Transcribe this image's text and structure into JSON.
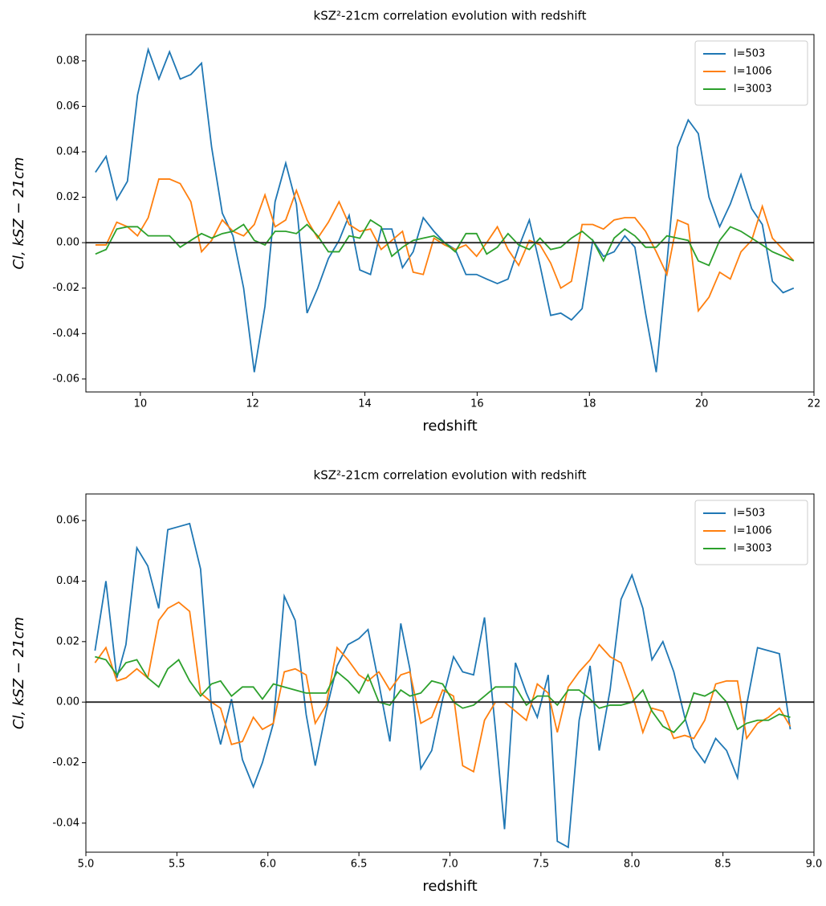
{
  "chart_data": [
    {
      "type": "line",
      "title": "kSZ²-21cm correlation evolution with redshift",
      "x_label": "redshift",
      "y_label": "Cl, kSZ − 21cm",
      "x": [
        9.2,
        9.39,
        9.58,
        9.77,
        9.95,
        10.14,
        10.33,
        10.52,
        10.71,
        10.9,
        11.09,
        11.27,
        11.46,
        11.65,
        11.84,
        12.03,
        12.22,
        12.4,
        12.59,
        12.78,
        12.97,
        13.16,
        13.35,
        13.54,
        13.72,
        13.91,
        14.1,
        14.29,
        14.48,
        14.67,
        14.86,
        15.04,
        15.23,
        15.42,
        15.61,
        15.8,
        15.99,
        16.17,
        16.36,
        16.55,
        16.74,
        16.93,
        17.12,
        17.31,
        17.49,
        17.68,
        17.87,
        18.06,
        18.25,
        18.44,
        18.63,
        18.81,
        19.0,
        19.19,
        19.38,
        19.57,
        19.76,
        19.94,
        20.13,
        20.32,
        20.51,
        20.7,
        20.89,
        21.08,
        21.26,
        21.45,
        21.64
      ],
      "series": [
        {
          "name": "l=503",
          "color": "#1f77b4",
          "values": [
            0.031,
            0.038,
            0.019,
            0.027,
            0.065,
            0.085,
            0.072,
            0.084,
            0.072,
            0.074,
            0.079,
            0.042,
            0.013,
            0.003,
            -0.02,
            -0.057,
            -0.028,
            0.018,
            0.035,
            0.017,
            -0.031,
            -0.02,
            -0.007,
            0.001,
            0.012,
            -0.012,
            -0.014,
            0.006,
            0.006,
            -0.011,
            -0.004,
            0.011,
            0.005,
            0.0,
            -0.003,
            -0.014,
            -0.014,
            -0.016,
            -0.018,
            -0.016,
            -0.002,
            0.01,
            -0.01,
            -0.032,
            -0.031,
            -0.034,
            -0.029,
            0.001,
            -0.006,
            -0.004,
            0.003,
            -0.002,
            -0.031,
            -0.057,
            -0.009,
            0.042,
            0.054,
            0.048,
            0.02,
            0.007,
            0.017,
            0.03,
            0.015,
            0.008,
            -0.017,
            -0.022,
            -0.02
          ]
        },
        {
          "name": "l=1006",
          "color": "#ff7f0e",
          "values": [
            -0.001,
            -0.001,
            0.009,
            0.007,
            0.003,
            0.011,
            0.028,
            0.028,
            0.026,
            0.018,
            -0.004,
            0.001,
            0.01,
            0.005,
            0.003,
            0.008,
            0.021,
            0.007,
            0.01,
            0.023,
            0.01,
            0.002,
            0.009,
            0.018,
            0.008,
            0.005,
            0.006,
            -0.003,
            0.001,
            0.005,
            -0.013,
            -0.014,
            0.002,
            -0.001,
            -0.003,
            -0.001,
            -0.006,
            0.0,
            0.007,
            -0.003,
            -0.01,
            0.001,
            -0.001,
            -0.009,
            -0.02,
            -0.017,
            0.008,
            0.008,
            0.006,
            0.01,
            0.011,
            0.011,
            0.005,
            -0.004,
            -0.014,
            0.01,
            0.008,
            -0.03,
            -0.024,
            -0.013,
            -0.016,
            -0.004,
            0.001,
            0.016,
            0.002,
            -0.003,
            -0.008
          ]
        },
        {
          "name": "l=3003",
          "color": "#2ca02c",
          "values": [
            -0.005,
            -0.003,
            0.006,
            0.007,
            0.007,
            0.003,
            0.003,
            0.003,
            -0.002,
            0.001,
            0.004,
            0.002,
            0.004,
            0.005,
            0.008,
            0.001,
            -0.001,
            0.005,
            0.005,
            0.004,
            0.008,
            0.003,
            -0.004,
            -0.004,
            0.003,
            0.002,
            0.01,
            0.007,
            -0.006,
            -0.002,
            0.001,
            0.002,
            0.003,
            0.0,
            -0.004,
            0.004,
            0.004,
            -0.005,
            -0.002,
            0.004,
            -0.001,
            -0.003,
            0.002,
            -0.003,
            -0.002,
            0.002,
            0.005,
            0.001,
            -0.008,
            0.002,
            0.006,
            0.003,
            -0.002,
            -0.002,
            0.003,
            0.002,
            0.001,
            -0.008,
            -0.01,
            0.001,
            0.007,
            0.005,
            0.002,
            -0.001,
            -0.004,
            -0.006,
            -0.008
          ]
        }
      ],
      "hline": 0,
      "hline_color": "#333333",
      "xlim": [
        9.03,
        22
      ],
      "xticks": [
        10,
        12,
        14,
        16,
        18,
        20,
        22
      ],
      "ylim": [
        -0.0657,
        0.0916
      ],
      "yticks": [
        -0.06,
        -0.04,
        -0.02,
        {
          "value": 0,
          "label": "0.00"
        },
        0.02,
        0.04,
        0.06,
        0.08
      ],
      "legend": "upper right"
    },
    {
      "type": "line",
      "title": "kSZ²-21cm correlation evolution with redshift",
      "x_label": "redshift",
      "y_label": "Cl, kSZ − 21cm",
      "x": [
        5.05,
        5.11,
        5.17,
        5.22,
        5.28,
        5.34,
        5.4,
        5.45,
        5.51,
        5.57,
        5.63,
        5.69,
        5.74,
        5.8,
        5.86,
        5.92,
        5.97,
        6.03,
        6.09,
        6.15,
        6.21,
        6.26,
        6.32,
        6.38,
        6.44,
        6.5,
        6.55,
        6.61,
        6.67,
        6.73,
        6.78,
        6.84,
        6.9,
        6.96,
        7.02,
        7.07,
        7.13,
        7.19,
        7.25,
        7.3,
        7.36,
        7.42,
        7.48,
        7.54,
        7.59,
        7.65,
        7.71,
        7.77,
        7.82,
        7.88,
        7.94,
        8.0,
        8.06,
        8.11,
        8.17,
        8.23,
        8.29,
        8.34,
        8.4,
        8.46,
        8.52,
        8.58,
        8.63,
        8.69,
        8.75,
        8.81,
        8.87
      ],
      "series": [
        {
          "name": "l=503",
          "color": "#1f77b4",
          "values": [
            0.017,
            0.04,
            0.008,
            0.019,
            0.051,
            0.045,
            0.031,
            0.057,
            0.058,
            0.059,
            0.044,
            -0.002,
            -0.014,
            0.001,
            -0.019,
            -0.028,
            -0.02,
            -0.007,
            0.035,
            0.027,
            -0.004,
            -0.021,
            -0.003,
            0.012,
            0.019,
            0.021,
            0.024,
            0.006,
            -0.013,
            0.026,
            0.011,
            -0.022,
            -0.016,
            0.001,
            0.015,
            0.01,
            0.009,
            0.028,
            -0.009,
            -0.042,
            0.013,
            0.003,
            -0.005,
            0.009,
            -0.046,
            -0.048,
            -0.006,
            0.012,
            -0.016,
            0.004,
            0.034,
            0.042,
            0.031,
            0.014,
            0.02,
            0.01,
            -0.005,
            -0.015,
            -0.02,
            -0.012,
            -0.016,
            -0.025,
            -0.001,
            0.018,
            0.017,
            0.016,
            -0.009
          ]
        },
        {
          "name": "l=1006",
          "color": "#ff7f0e",
          "values": [
            0.013,
            0.018,
            0.007,
            0.008,
            0.011,
            0.008,
            0.027,
            0.031,
            0.033,
            0.03,
            0.003,
            0.0,
            -0.002,
            -0.014,
            -0.013,
            -0.005,
            -0.009,
            -0.007,
            0.01,
            0.011,
            0.009,
            -0.007,
            -0.001,
            0.018,
            0.014,
            0.009,
            0.007,
            0.01,
            0.004,
            0.009,
            0.01,
            -0.007,
            -0.005,
            0.004,
            0.002,
            -0.021,
            -0.023,
            -0.006,
            0.0,
            0.0,
            -0.003,
            -0.006,
            0.006,
            0.003,
            -0.01,
            0.005,
            0.01,
            0.014,
            0.019,
            0.015,
            0.013,
            0.003,
            -0.01,
            -0.002,
            -0.003,
            -0.012,
            -0.011,
            -0.012,
            -0.006,
            0.006,
            0.007,
            0.007,
            -0.012,
            -0.007,
            -0.005,
            -0.002,
            -0.008
          ]
        },
        {
          "name": "l=3003",
          "color": "#2ca02c",
          "values": [
            0.015,
            0.014,
            0.009,
            0.013,
            0.014,
            0.008,
            0.005,
            0.011,
            0.014,
            0.007,
            0.002,
            0.006,
            0.007,
            0.002,
            0.005,
            0.005,
            0.001,
            0.006,
            0.005,
            0.004,
            0.003,
            0.003,
            0.003,
            0.01,
            0.007,
            0.003,
            0.009,
            0.0,
            -0.001,
            0.004,
            0.002,
            0.003,
            0.007,
            0.006,
            0.0,
            -0.002,
            -0.001,
            0.002,
            0.005,
            0.005,
            0.005,
            -0.001,
            0.002,
            0.002,
            -0.001,
            0.004,
            0.004,
            0.001,
            -0.002,
            -0.001,
            -0.001,
            0.0,
            0.004,
            -0.003,
            -0.008,
            -0.01,
            -0.006,
            0.003,
            0.002,
            0.004,
            0.0,
            -0.009,
            -0.007,
            -0.006,
            -0.006,
            -0.004,
            -0.005
          ]
        }
      ],
      "hline": 0,
      "hline_color": "#333333",
      "xlim": [
        5.0,
        9.0
      ],
      "xticks": [
        {
          "value": 5,
          "label": "5.0"
        },
        5.5,
        {
          "value": 6,
          "label": "6.0"
        },
        6.5,
        {
          "value": 7,
          "label": "7.0"
        },
        7.5,
        {
          "value": 8,
          "label": "8.0"
        },
        8.5,
        {
          "value": 9,
          "label": "9.0"
        }
      ],
      "ylim": [
        -0.0496,
        0.0688
      ],
      "yticks": [
        -0.04,
        -0.02,
        {
          "value": 0,
          "label": "0.00"
        },
        0.02,
        0.04,
        0.06
      ],
      "legend": "upper right"
    }
  ]
}
